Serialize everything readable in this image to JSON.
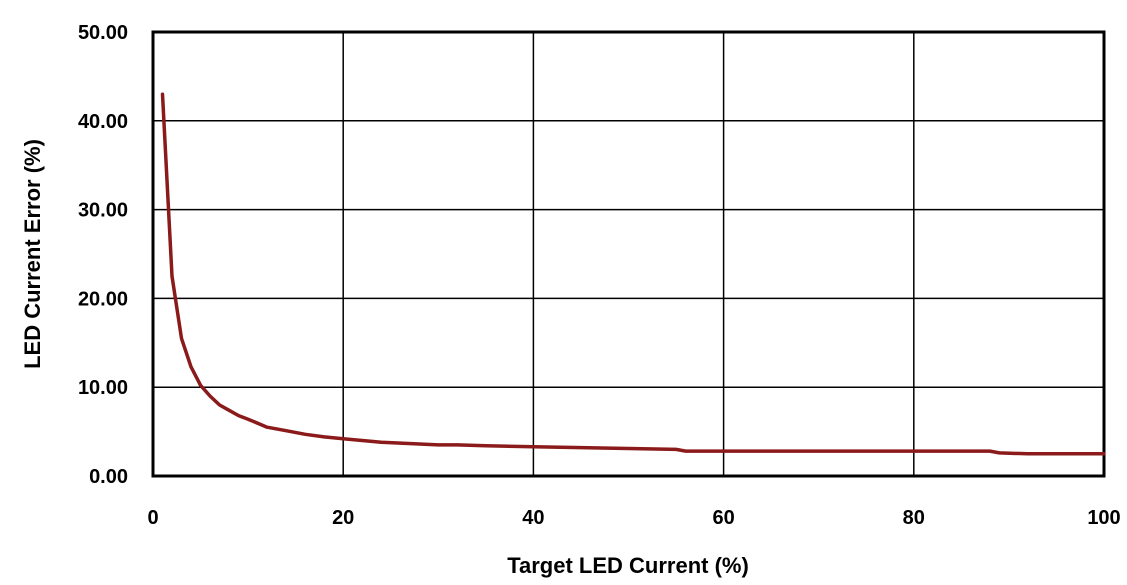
{
  "chart_data": {
    "type": "line",
    "title": "",
    "xlabel": "Target LED Current (%)",
    "ylabel": "LED Current Error (%)",
    "xlim": [
      0,
      100
    ],
    "ylim": [
      0,
      50
    ],
    "xticks": [
      0,
      20,
      40,
      60,
      80,
      100
    ],
    "xtick_labels": [
      "0",
      "20",
      "40",
      "60",
      "80",
      "100"
    ],
    "yticks": [
      0,
      10,
      20,
      30,
      40,
      50
    ],
    "ytick_labels": [
      "0.00",
      "10.00",
      "20.00",
      "30.00",
      "40.00",
      "50.00"
    ],
    "grid": true,
    "legend": "none",
    "series": [
      {
        "color": "#8b1a1a",
        "x": [
          1,
          2,
          3,
          4,
          5,
          6,
          7,
          8,
          9,
          10,
          12,
          14,
          16,
          18,
          20,
          22,
          24,
          26,
          28,
          30,
          32,
          35,
          40,
          45,
          50,
          55,
          56,
          60,
          65,
          70,
          75,
          80,
          85,
          88,
          89,
          92,
          96,
          100
        ],
        "y": [
          43.0,
          22.5,
          15.5,
          12.3,
          10.2,
          9.0,
          8.0,
          7.4,
          6.8,
          6.4,
          5.5,
          5.1,
          4.7,
          4.4,
          4.2,
          4.0,
          3.8,
          3.7,
          3.6,
          3.5,
          3.5,
          3.4,
          3.3,
          3.2,
          3.1,
          3.0,
          2.8,
          2.8,
          2.8,
          2.8,
          2.8,
          2.8,
          2.8,
          2.8,
          2.6,
          2.5,
          2.5,
          2.5
        ]
      }
    ]
  }
}
